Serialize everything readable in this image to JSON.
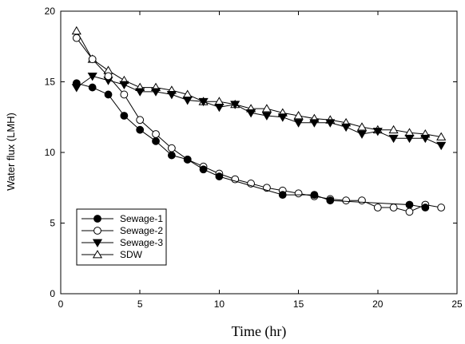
{
  "chart_data": {
    "type": "line",
    "xlabel": "Time  (hr)",
    "ylabel": "Water flux (LMH)",
    "xlim": [
      0,
      25
    ],
    "ylim": [
      0,
      20
    ],
    "x_ticks": [
      "0",
      "5",
      "10",
      "15",
      "20",
      "25"
    ],
    "y_ticks": [
      "0",
      "5",
      "10",
      "15",
      "20"
    ],
    "grid": false,
    "legend_position": "bottom-left",
    "series": [
      {
        "name": "Sewage-1",
        "marker": "filled-circle",
        "x": [
          1,
          2,
          3,
          4,
          5,
          6,
          7,
          8,
          9,
          10,
          14,
          16,
          17,
          22,
          23
        ],
        "y": [
          14.9,
          14.6,
          14.1,
          12.6,
          11.6,
          10.8,
          9.8,
          9.5,
          8.8,
          8.3,
          7.0,
          7.0,
          6.6,
          6.3,
          6.1
        ]
      },
      {
        "name": "Sewage-2",
        "marker": "open-circle",
        "x": [
          1,
          2,
          3,
          4,
          5,
          6,
          7,
          8,
          9,
          10,
          11,
          12,
          13,
          14,
          15,
          16,
          17,
          18,
          19,
          20,
          21,
          22,
          23,
          24
        ],
        "y": [
          18.1,
          16.6,
          15.4,
          14.1,
          12.3,
          11.3,
          10.3,
          9.5,
          9.0,
          8.5,
          8.1,
          7.8,
          7.5,
          7.3,
          7.1,
          6.9,
          6.7,
          6.6,
          6.6,
          6.1,
          6.1,
          5.8,
          6.3,
          6.1
        ]
      },
      {
        "name": "Sewage-3",
        "marker": "filled-triangle-down",
        "x": [
          1,
          2,
          3,
          4,
          5,
          6,
          7,
          8,
          9,
          10,
          11,
          12,
          13,
          14,
          15,
          16,
          17,
          18,
          19,
          20,
          21,
          22,
          23,
          24
        ],
        "y": [
          14.6,
          15.4,
          15.1,
          14.8,
          14.3,
          14.3,
          14.1,
          13.7,
          13.6,
          13.2,
          13.4,
          12.8,
          12.6,
          12.5,
          12.1,
          12.1,
          12.1,
          11.8,
          11.3,
          11.5,
          11.0,
          11.0,
          11.0,
          10.5
        ]
      },
      {
        "name": "SDW",
        "marker": "open-triangle-up",
        "x": [
          1,
          2,
          3,
          4,
          5,
          6,
          7,
          8,
          9,
          10,
          11,
          12,
          13,
          14,
          15,
          16,
          17,
          18,
          19,
          20,
          21,
          22,
          23,
          24
        ],
        "y": [
          18.6,
          16.6,
          15.8,
          15.1,
          14.6,
          14.6,
          14.4,
          14.1,
          13.6,
          13.6,
          13.4,
          13.1,
          13.1,
          12.8,
          12.6,
          12.4,
          12.3,
          12.1,
          11.8,
          11.6,
          11.6,
          11.4,
          11.3,
          11.1
        ]
      }
    ]
  }
}
